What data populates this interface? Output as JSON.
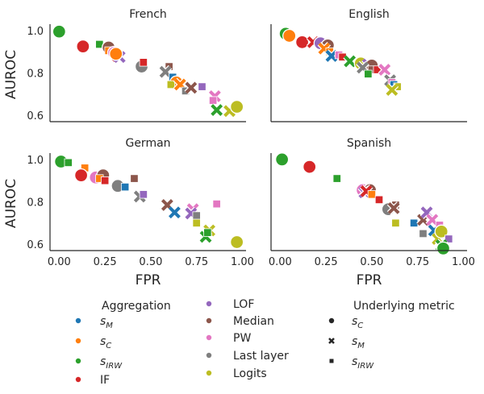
{
  "chart_data": {
    "type": "scatter",
    "xlabel": "FPR",
    "ylabel": "AUROC",
    "xlim": [
      -0.05,
      1.02
    ],
    "ylim": [
      0.57,
      1.03
    ],
    "xticks": [
      "0.00",
      "0.25",
      "0.50",
      "0.75",
      "1.00"
    ],
    "yticks": [
      "0.6",
      "0.8",
      "1.0"
    ],
    "legend": {
      "aggregation_title": "Aggregation",
      "metric_title": "Underlying metric",
      "aggregation": [
        {
          "key": "sM",
          "base": "s",
          "sub": "M",
          "color": "#1f77b4"
        },
        {
          "key": "sC",
          "base": "s",
          "sub": "C",
          "color": "#ff7f0e"
        },
        {
          "key": "sIRW",
          "base": "s",
          "sub": "IRW",
          "color": "#2ca02c"
        },
        {
          "key": "IF",
          "label": "IF",
          "color": "#d62728"
        },
        {
          "key": "LOF",
          "label": "LOF",
          "color": "#9467bd"
        },
        {
          "key": "Median",
          "label": "Median",
          "color": "#8c564b"
        },
        {
          "key": "PW",
          "label": "PW",
          "color": "#e377c2"
        },
        {
          "key": "Last layer",
          "label": "Last layer",
          "color": "#7f7f7f"
        },
        {
          "key": "Logits",
          "label": "Logits",
          "color": "#bcbd22"
        }
      ],
      "metric": [
        {
          "key": "sC",
          "base": "s",
          "sub": "C",
          "marker": "circle"
        },
        {
          "key": "sM",
          "base": "s",
          "sub": "M",
          "marker": "x"
        },
        {
          "key": "sIRW",
          "base": "s",
          "sub": "IRW",
          "marker": "square"
        }
      ]
    },
    "panels": [
      {
        "title": "French",
        "show_xlabel": false,
        "show_ylabel": true,
        "points": [
          [
            "sIRW",
            "circle",
            0.0,
            0.995
          ],
          [
            "IF",
            "circle",
            0.13,
            0.925
          ],
          [
            "sIRW",
            "square",
            0.22,
            0.935
          ],
          [
            "Median",
            "circle",
            0.27,
            0.92
          ],
          [
            "sC",
            "square",
            0.27,
            0.905
          ],
          [
            "PW",
            "circle",
            0.3,
            0.895
          ],
          [
            "IF",
            "x",
            0.32,
            0.88
          ],
          [
            "LOF",
            "x",
            0.33,
            0.875
          ],
          [
            "sC",
            "circle",
            0.31,
            0.89
          ],
          [
            "Last layer",
            "circle",
            0.45,
            0.83
          ],
          [
            "IF",
            "square",
            0.46,
            0.85
          ],
          [
            "Median",
            "square",
            0.6,
            0.83
          ],
          [
            "Last layer",
            "x",
            0.58,
            0.805
          ],
          [
            "sM",
            "square",
            0.62,
            0.78
          ],
          [
            "sC",
            "circle",
            0.64,
            0.755
          ],
          [
            "Logits",
            "square",
            0.61,
            0.745
          ],
          [
            "sC",
            "x",
            0.66,
            0.745
          ],
          [
            "Last layer",
            "square",
            0.69,
            0.715
          ],
          [
            "Median",
            "x",
            0.72,
            0.73
          ],
          [
            "LOF",
            "square",
            0.78,
            0.735
          ],
          [
            "PW",
            "x",
            0.85,
            0.69
          ],
          [
            "PW",
            "square",
            0.84,
            0.67
          ],
          [
            "sIRW",
            "x",
            0.86,
            0.625
          ],
          [
            "Logits",
            "x",
            0.93,
            0.62
          ],
          [
            "Logits",
            "circle",
            0.97,
            0.64
          ]
        ]
      },
      {
        "title": "English",
        "show_xlabel": false,
        "show_ylabel": false,
        "points": [
          [
            "sIRW",
            "circle",
            0.03,
            0.985
          ],
          [
            "sC",
            "circle",
            0.05,
            0.975
          ],
          [
            "IF",
            "circle",
            0.12,
            0.945
          ],
          [
            "IF",
            "x",
            0.18,
            0.945
          ],
          [
            "LOF",
            "circle",
            0.22,
            0.94
          ],
          [
            "Median",
            "circle",
            0.26,
            0.93
          ],
          [
            "sC",
            "x",
            0.24,
            0.915
          ],
          [
            "sC",
            "square",
            0.27,
            0.9
          ],
          [
            "sM",
            "x",
            0.28,
            0.88
          ],
          [
            "PW",
            "square",
            0.32,
            0.885
          ],
          [
            "IF",
            "square",
            0.34,
            0.875
          ],
          [
            "sIRW",
            "x",
            0.38,
            0.855
          ],
          [
            "Logits",
            "circle",
            0.44,
            0.845
          ],
          [
            "LOF",
            "x",
            0.48,
            0.84
          ],
          [
            "Median",
            "circle",
            0.5,
            0.835
          ],
          [
            "Last layer",
            "x",
            0.45,
            0.825
          ],
          [
            "Median",
            "square",
            0.5,
            0.815
          ],
          [
            "sIRW",
            "square",
            0.48,
            0.795
          ],
          [
            "IF",
            "square",
            0.53,
            0.815
          ],
          [
            "PW",
            "x",
            0.57,
            0.815
          ],
          [
            "Last layer",
            "x",
            0.6,
            0.765
          ],
          [
            "PW",
            "square",
            0.61,
            0.755
          ],
          [
            "sM",
            "square",
            0.62,
            0.745
          ],
          [
            "Logits",
            "square",
            0.64,
            0.735
          ],
          [
            "Logits",
            "x",
            0.61,
            0.72
          ]
        ]
      },
      {
        "title": "German",
        "show_xlabel": true,
        "show_ylabel": true,
        "points": [
          [
            "sIRW",
            "circle",
            0.01,
            0.99
          ],
          [
            "sIRW",
            "square",
            0.05,
            0.985
          ],
          [
            "sC",
            "square",
            0.14,
            0.96
          ],
          [
            "IF",
            "circle",
            0.12,
            0.925
          ],
          [
            "PW",
            "circle",
            0.2,
            0.915
          ],
          [
            "Median",
            "circle",
            0.24,
            0.925
          ],
          [
            "sC",
            "square",
            0.22,
            0.91
          ],
          [
            "IF",
            "square",
            0.25,
            0.9
          ],
          [
            "Last layer",
            "circle",
            0.32,
            0.875
          ],
          [
            "Median",
            "square",
            0.41,
            0.91
          ],
          [
            "sM",
            "square",
            0.36,
            0.87
          ],
          [
            "Last layer",
            "x",
            0.44,
            0.825
          ],
          [
            "LOF",
            "square",
            0.46,
            0.835
          ],
          [
            "Median",
            "x",
            0.59,
            0.785
          ],
          [
            "sM",
            "x",
            0.63,
            0.75
          ],
          [
            "PW",
            "x",
            0.73,
            0.765
          ],
          [
            "LOF",
            "x",
            0.72,
            0.745
          ],
          [
            "Last layer",
            "square",
            0.75,
            0.735
          ],
          [
            "PW",
            "square",
            0.86,
            0.79
          ],
          [
            "Logits",
            "square",
            0.75,
            0.7
          ],
          [
            "Logits",
            "x",
            0.82,
            0.665
          ],
          [
            "sIRW",
            "x",
            0.8,
            0.635
          ],
          [
            "sIRW",
            "square",
            0.81,
            0.655
          ],
          [
            "Logits",
            "circle",
            0.97,
            0.61
          ]
        ]
      },
      {
        "title": "Spanish",
        "show_xlabel": true,
        "show_ylabel": false,
        "points": [
          [
            "sIRW",
            "circle",
            0.01,
            1.0
          ],
          [
            "IF",
            "circle",
            0.16,
            0.965
          ],
          [
            "sIRW",
            "square",
            0.31,
            0.91
          ],
          [
            "PW",
            "circle",
            0.45,
            0.855
          ],
          [
            "Median",
            "circle",
            0.49,
            0.855
          ],
          [
            "LOF",
            "x",
            0.46,
            0.845
          ],
          [
            "IF",
            "x",
            0.47,
            0.85
          ],
          [
            "sC",
            "square",
            0.5,
            0.835
          ],
          [
            "IF",
            "square",
            0.54,
            0.81
          ],
          [
            "Last layer",
            "circle",
            0.59,
            0.765
          ],
          [
            "Median",
            "square",
            0.63,
            0.785
          ],
          [
            "Logits",
            "square",
            0.63,
            0.7
          ],
          [
            "Median",
            "x",
            0.62,
            0.77
          ],
          [
            "sM",
            "square",
            0.73,
            0.7
          ],
          [
            "Median",
            "x",
            0.78,
            0.715
          ],
          [
            "LOF",
            "x",
            0.8,
            0.75
          ],
          [
            "PW",
            "x",
            0.83,
            0.715
          ],
          [
            "Last layer",
            "square",
            0.78,
            0.65
          ],
          [
            "sM",
            "x",
            0.84,
            0.665
          ],
          [
            "PW",
            "square",
            0.87,
            0.69
          ],
          [
            "Logits",
            "x",
            0.86,
            0.625
          ],
          [
            "Logits",
            "circle",
            0.88,
            0.66
          ],
          [
            "LOF",
            "square",
            0.92,
            0.625
          ],
          [
            "sIRW",
            "x",
            0.88,
            0.595
          ],
          [
            "sIRW",
            "circle",
            0.89,
            0.58
          ]
        ]
      }
    ]
  }
}
